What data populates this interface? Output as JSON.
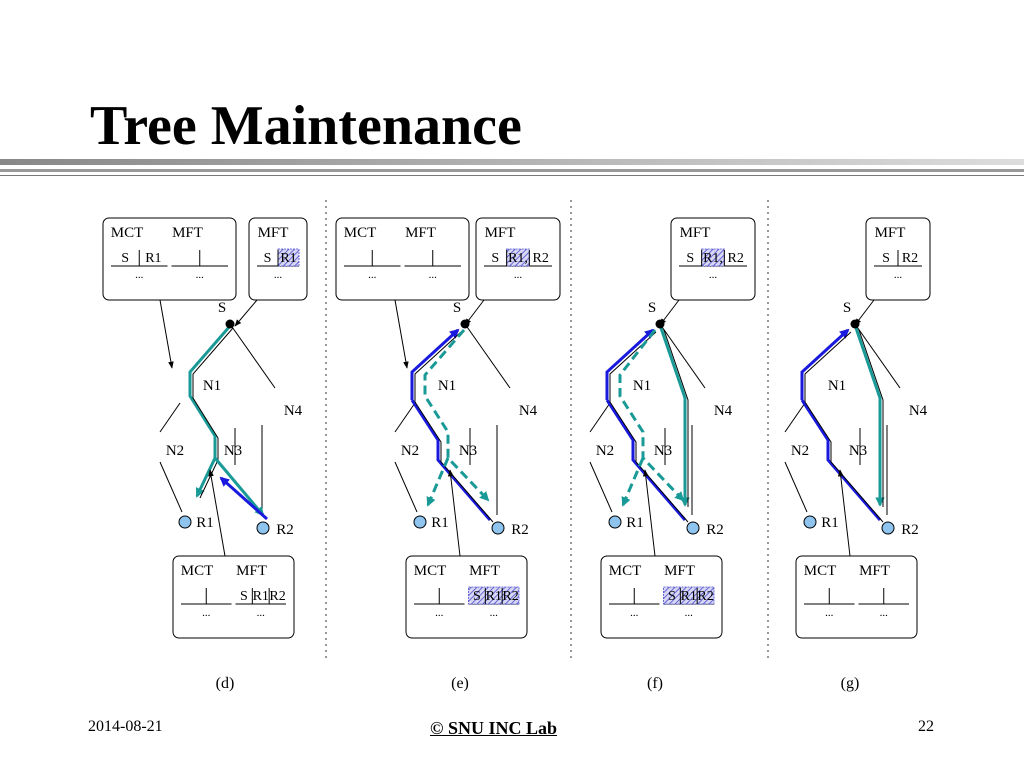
{
  "slide": {
    "title": "Tree Maintenance",
    "date": "2014-08-21",
    "copyright": "© SNU INC Lab",
    "page_number": "22"
  },
  "colors": {
    "teal": "#1a9a96",
    "blue": "#1a1adf",
    "node_fill": "#8ec4ee",
    "hatch": "#4a4acc"
  },
  "labels": {
    "mct": "MCT",
    "mft": "MFT",
    "source": "S",
    "r1": "R1",
    "r2": "R2",
    "n1": "N1",
    "n2": "N2",
    "n3": "N3",
    "n4": "N4",
    "ellipsis": "..."
  },
  "tables": {
    "d_top_left": {
      "mct": [
        "S",
        "R1"
      ],
      "mft": []
    },
    "d_top_right": {
      "mft": [
        "S",
        "R1"
      ]
    },
    "d_bottom": {
      "mct": [],
      "mft": [
        "S",
        "R1",
        "R2"
      ]
    },
    "e_top_left": {
      "mct": [],
      "mft": []
    },
    "e_top_right": {
      "mft": [
        "S",
        "R1,",
        "R2"
      ]
    },
    "e_bottom": {
      "mct": [],
      "mft": [
        "S",
        "R1",
        "R2"
      ]
    },
    "f_top": {
      "mft": [
        "S",
        "R1,",
        "R2"
      ]
    },
    "f_bottom": {
      "mct": [],
      "mft": [
        "S",
        "R1",
        "R2"
      ]
    },
    "g_top": {
      "mft": [
        "S",
        "R2"
      ]
    },
    "g_bottom": {
      "mct": [],
      "mft": []
    }
  },
  "panels": [
    {
      "caption": "(d)"
    },
    {
      "caption": "(e)"
    },
    {
      "caption": "(f)"
    },
    {
      "caption": "(g)"
    }
  ]
}
